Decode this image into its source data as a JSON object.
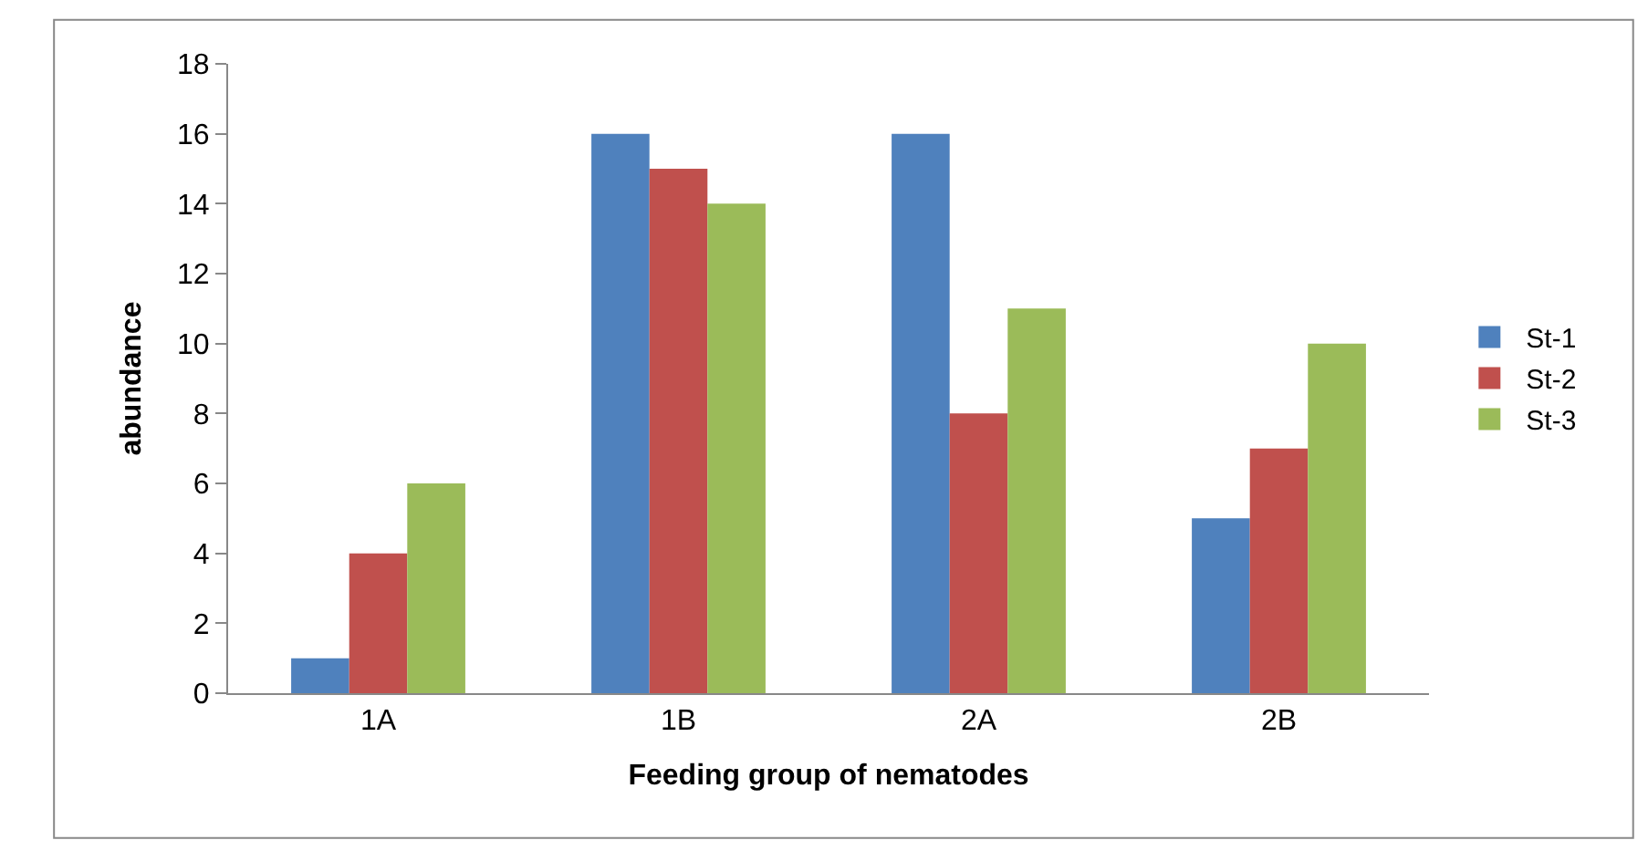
{
  "chart_data": {
    "type": "bar",
    "xlabel": "Feeding group of nematodes",
    "ylabel": "abundance",
    "categories": [
      "1A",
      "1B",
      "2A",
      "2B"
    ],
    "series": [
      {
        "name": "St-1",
        "color": "#4f81bd",
        "values": [
          1,
          16,
          16,
          5
        ]
      },
      {
        "name": "St-2",
        "color": "#c0504d",
        "values": [
          4,
          15,
          8,
          7
        ]
      },
      {
        "name": "St-3",
        "color": "#9bbb59",
        "values": [
          6,
          14,
          11,
          10
        ]
      }
    ],
    "ylim": [
      0,
      18
    ],
    "yticks": [
      0,
      2,
      4,
      6,
      8,
      10,
      12,
      14,
      16,
      18
    ],
    "legend": "right"
  }
}
